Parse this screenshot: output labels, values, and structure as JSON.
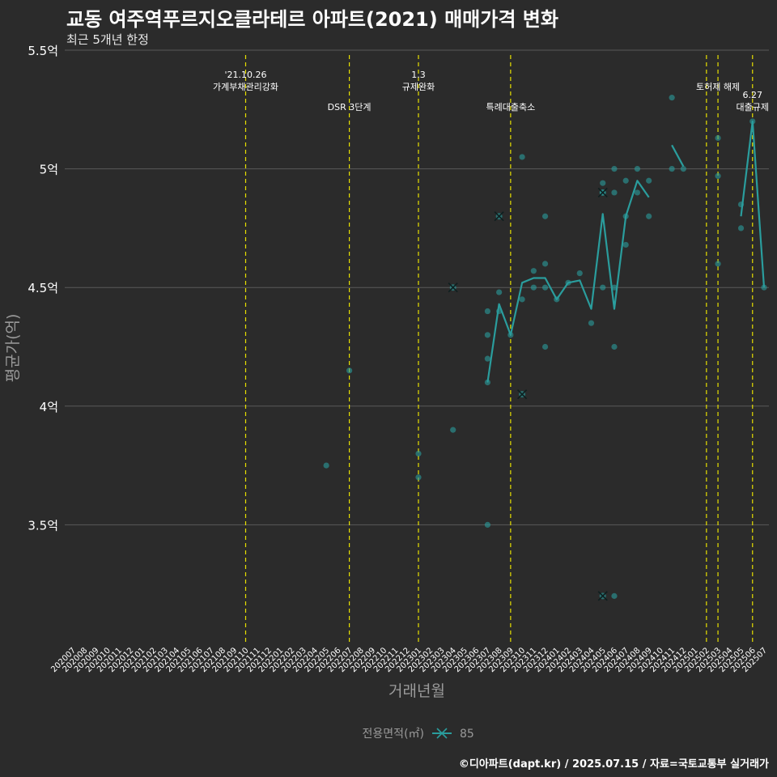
{
  "chart_data": {
    "type": "line",
    "title": "교동 여주역푸르지오클라테르 아파트(2021) 매매가격 변화",
    "subtitle": "최근 5개년 한정",
    "xlabel": "거래년월",
    "ylabel": "평균가(억)",
    "caption": "©디아파트(dapt.kr) / 2025.07.15 / 자료=국토교통부 실거래가",
    "legend_title": "전용면적(㎡)",
    "legend_position": "bottom",
    "ylim": [
      3.0,
      5.5
    ],
    "y_ticks": [
      3.5,
      4.0,
      4.5,
      5.0,
      5.5
    ],
    "y_tick_labels": [
      "3.5억",
      "4억",
      "4.5억",
      "5억",
      "5.5억"
    ],
    "categories": [
      "202007",
      "202008",
      "202009",
      "202010",
      "202011",
      "202012",
      "202101",
      "202102",
      "202103",
      "202104",
      "202105",
      "202106",
      "202107",
      "202108",
      "202109",
      "202110",
      "202111",
      "202112",
      "202201",
      "202202",
      "202203",
      "202204",
      "202205",
      "202206",
      "202207",
      "202208",
      "202209",
      "202210",
      "202211",
      "202212",
      "202301",
      "202302",
      "202303",
      "202304",
      "202305",
      "202306",
      "202307",
      "202308",
      "202309",
      "202310",
      "202311",
      "202312",
      "202401",
      "202402",
      "202403",
      "202404",
      "202405",
      "202406",
      "202407",
      "202408",
      "202409",
      "202410",
      "202411",
      "202412",
      "202501",
      "202502",
      "202503",
      "202504",
      "202505",
      "202506",
      "202507"
    ],
    "events": [
      {
        "month": "202110",
        "label": "'21.10.26\n가계부채관리강화",
        "level": 0
      },
      {
        "month": "202207",
        "label": "DSR 3단계",
        "level": 1
      },
      {
        "month": "202301",
        "label": "1.3\n규제완화",
        "level": 0
      },
      {
        "month": "202309",
        "label": "특례대출축소",
        "level": 1
      },
      {
        "month": "202502",
        "label": "",
        "level": 0
      },
      {
        "month": "202503",
        "label": "토허제 해제",
        "level": 0
      },
      {
        "month": "202506",
        "label": "6.27\n대출규제",
        "level": 1
      }
    ],
    "series": [
      {
        "name": "85",
        "color": "#2a9d9d",
        "line_segments": [
          [
            [
              "202307",
              4.1
            ],
            [
              "202308",
              4.43
            ],
            [
              "202309",
              4.3
            ],
            [
              "202310",
              4.52
            ],
            [
              "202311",
              4.54
            ],
            [
              "202312",
              4.54
            ],
            [
              "202401",
              4.45
            ],
            [
              "202402",
              4.52
            ],
            [
              "202403",
              4.53
            ],
            [
              "202404",
              4.41
            ],
            [
              "202405",
              4.81
            ],
            [
              "202406",
              4.41
            ],
            [
              "202407",
              4.8
            ],
            [
              "202408",
              4.95
            ],
            [
              "202409",
              4.88
            ]
          ],
          [
            [
              "202411",
              5.1
            ],
            [
              "202412",
              5.01
            ]
          ],
          [
            [
              "202505",
              4.8
            ],
            [
              "202506",
              5.2
            ],
            [
              "202507",
              4.5
            ]
          ]
        ],
        "points": [
          [
            "202205",
            3.75
          ],
          [
            "202207",
            4.15
          ],
          [
            "202301",
            3.8
          ],
          [
            "202301",
            3.7
          ],
          [
            "202304",
            3.9
          ],
          [
            "202307",
            4.1
          ],
          [
            "202307",
            4.2
          ],
          [
            "202307",
            4.3
          ],
          [
            "202307",
            4.4
          ],
          [
            "202307",
            3.5
          ],
          [
            "202308",
            4.48
          ],
          [
            "202308",
            4.4
          ],
          [
            "202309",
            4.3
          ],
          [
            "202310",
            5.05
          ],
          [
            "202310",
            4.45
          ],
          [
            "202311",
            4.57
          ],
          [
            "202311",
            4.5
          ],
          [
            "202312",
            4.8
          ],
          [
            "202312",
            4.6
          ],
          [
            "202312",
            4.5
          ],
          [
            "202312",
            4.25
          ],
          [
            "202401",
            4.45
          ],
          [
            "202402",
            4.52
          ],
          [
            "202403",
            4.56
          ],
          [
            "202404",
            4.35
          ],
          [
            "202405",
            4.94
          ],
          [
            "202405",
            4.9
          ],
          [
            "202405",
            4.5
          ],
          [
            "202406",
            5.0
          ],
          [
            "202406",
            4.9
          ],
          [
            "202406",
            4.5
          ],
          [
            "202406",
            4.25
          ],
          [
            "202406",
            3.2
          ],
          [
            "202407",
            4.95
          ],
          [
            "202407",
            4.8
          ],
          [
            "202407",
            4.68
          ],
          [
            "202408",
            5.0
          ],
          [
            "202408",
            4.9
          ],
          [
            "202409",
            4.95
          ],
          [
            "202409",
            4.8
          ],
          [
            "202411",
            5.3
          ],
          [
            "202411",
            5.0
          ],
          [
            "202412",
            5.0
          ],
          [
            "202503",
            5.13
          ],
          [
            "202503",
            4.97
          ],
          [
            "202503",
            4.6
          ],
          [
            "202505",
            4.85
          ],
          [
            "202505",
            4.75
          ],
          [
            "202506",
            5.2
          ],
          [
            "202507",
            4.5
          ]
        ],
        "cross_points": [
          [
            "202304",
            4.5
          ],
          [
            "202308",
            4.8
          ],
          [
            "202310",
            4.05
          ],
          [
            "202405",
            4.9
          ],
          [
            "202405",
            3.2
          ]
        ]
      }
    ]
  }
}
